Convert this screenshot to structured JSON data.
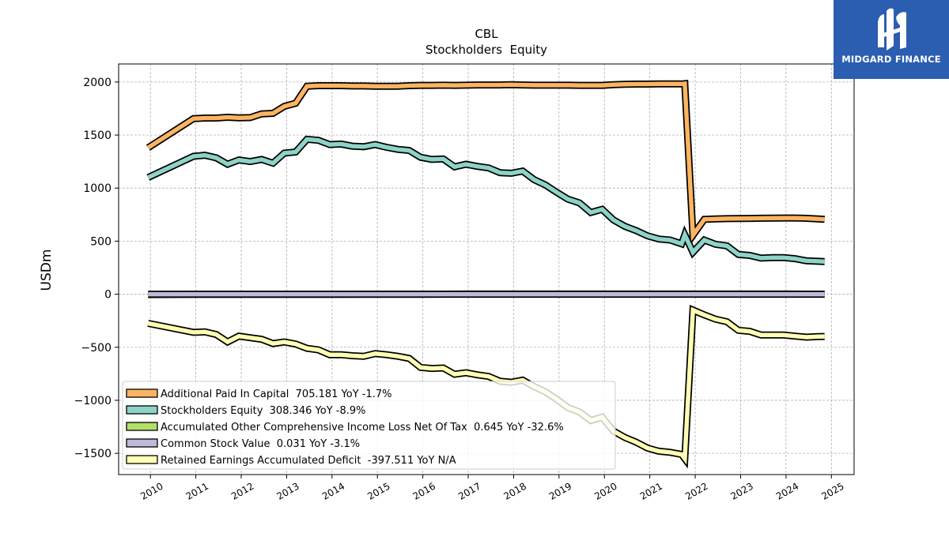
{
  "chart_data": {
    "type": "line",
    "title": "CBL",
    "subtitle": "Stockholders  Equity",
    "ylabel": "USDm",
    "xlabel": "",
    "ylim": [
      -1700,
      2170
    ],
    "xlim": [
      2009.3,
      2025.5
    ],
    "x_ticks": [
      2010,
      2011,
      2012,
      2013,
      2014,
      2015,
      2016,
      2017,
      2018,
      2019,
      2020,
      2021,
      2022,
      2023,
      2024,
      2025
    ],
    "y_ticks": [
      2000,
      1500,
      1000,
      500,
      0,
      -500,
      -1000,
      -1500
    ],
    "y_tick_labels": [
      "2000",
      "1500",
      "1000",
      "500",
      "0",
      "−500",
      "−1000",
      "−1500"
    ],
    "grid": true,
    "legend_position": "lower-left",
    "series": [
      {
        "name": "Additional Paid In Capital",
        "legend": "Additional Paid In Capital  705.181 YoY -1.7%",
        "color": "#fdb462",
        "x": [
          2009.95,
          2010.95,
          2011.2,
          2011.45,
          2011.7,
          2011.95,
          2012.2,
          2012.45,
          2012.7,
          2012.95,
          2013.2,
          2013.45,
          2013.7,
          2013.95,
          2014.2,
          2014.45,
          2014.7,
          2014.95,
          2015.2,
          2015.45,
          2015.7,
          2015.95,
          2016.2,
          2016.45,
          2016.7,
          2016.95,
          2017.2,
          2017.45,
          2017.7,
          2017.95,
          2018.2,
          2018.45,
          2018.7,
          2018.95,
          2019.2,
          2019.45,
          2019.7,
          2019.95,
          2020.2,
          2020.45,
          2020.7,
          2020.95,
          2021.2,
          2021.45,
          2021.7,
          2021.77,
          2021.95,
          2022.2,
          2022.45,
          2022.7,
          2022.95,
          2023.2,
          2023.45,
          2023.7,
          2023.95,
          2024.2,
          2024.45,
          2024.7,
          2024.85
        ],
        "y": [
          1380,
          1655,
          1660,
          1660,
          1668,
          1662,
          1665,
          1700,
          1705,
          1770,
          1800,
          1960,
          1965,
          1965,
          1965,
          1962,
          1962,
          1960,
          1960,
          1960,
          1965,
          1968,
          1968,
          1970,
          1968,
          1970,
          1972,
          1972,
          1972,
          1975,
          1972,
          1970,
          1970,
          1970,
          1970,
          1968,
          1968,
          1968,
          1975,
          1978,
          1980,
          1980,
          1982,
          1982,
          1982,
          1985,
          555,
          705,
          710,
          712,
          713,
          714,
          716,
          717,
          718,
          718,
          715,
          710,
          705
        ]
      },
      {
        "name": "Stockholders Equity",
        "legend": "Stockholders Equity  308.346 YoY -8.9%",
        "color": "#8dd3c7",
        "x": [
          2009.95,
          2010.95,
          2011.2,
          2011.45,
          2011.7,
          2011.95,
          2012.2,
          2012.45,
          2012.7,
          2012.95,
          2013.2,
          2013.45,
          2013.7,
          2013.95,
          2014.2,
          2014.45,
          2014.7,
          2014.95,
          2015.2,
          2015.45,
          2015.7,
          2015.95,
          2016.2,
          2016.45,
          2016.7,
          2016.95,
          2017.2,
          2017.45,
          2017.7,
          2017.95,
          2018.2,
          2018.45,
          2018.7,
          2018.95,
          2019.2,
          2019.45,
          2019.7,
          2019.95,
          2020.2,
          2020.45,
          2020.7,
          2020.95,
          2021.2,
          2021.45,
          2021.7,
          2021.77,
          2021.95,
          2022.2,
          2022.45,
          2022.7,
          2022.95,
          2023.2,
          2023.45,
          2023.7,
          2023.95,
          2024.2,
          2024.45,
          2024.7,
          2024.85
        ],
        "y": [
          1100,
          1300,
          1310,
          1285,
          1225,
          1265,
          1250,
          1270,
          1235,
          1330,
          1340,
          1460,
          1450,
          1410,
          1415,
          1395,
          1390,
          1410,
          1385,
          1365,
          1355,
          1290,
          1270,
          1275,
          1200,
          1225,
          1205,
          1190,
          1145,
          1140,
          1160,
          1080,
          1030,
          960,
          895,
          860,
          770,
          800,
          700,
          640,
          600,
          550,
          520,
          510,
          475,
          560,
          395,
          510,
          470,
          455,
          375,
          365,
          340,
          345,
          345,
          335,
          315,
          310,
          308
        ]
      },
      {
        "name": "Accumulated Other Comprehensive Income Loss Net Of Tax",
        "legend": "Accumulated Other Comprehensive Income Loss Net Of Tax  0.645 YoY -32.6%",
        "color": "#b3de69",
        "x": [
          2009.95,
          2011.0,
          2012.0,
          2013.0,
          2014.0,
          2015.0,
          2016.0,
          2017.0,
          2018.0,
          2019.0,
          2020.0,
          2021.0,
          2022.0,
          2023.0,
          2024.0,
          2024.85
        ],
        "y": [
          -3,
          -2,
          -2,
          -1,
          -1,
          0,
          0,
          1,
          1,
          1,
          1,
          1,
          1,
          1,
          1,
          0.645
        ]
      },
      {
        "name": "Common Stock Value",
        "legend": "Common Stock Value  0.031 YoY -3.1%",
        "color": "#bebada",
        "x": [
          2009.95,
          2011.0,
          2012.0,
          2013.0,
          2014.0,
          2014.8,
          2015.2,
          2016.0,
          2017.0,
          2018.0,
          2019.0,
          2020.0,
          2021.0,
          2021.95,
          2022.5,
          2023.0,
          2024.0,
          2024.85
        ],
        "y": [
          0,
          0,
          0,
          0,
          0,
          0,
          0,
          0,
          0,
          0,
          0,
          0,
          0,
          0,
          0,
          0,
          0,
          0.031
        ]
      },
      {
        "name": "Retained Earnings Accumulated Deficit",
        "legend": "Retained Earnings Accumulated Deficit  -397.511 YoY N/A",
        "color": "#ffffb3",
        "x": [
          2009.95,
          2010.95,
          2011.2,
          2011.45,
          2011.7,
          2011.95,
          2012.2,
          2012.45,
          2012.7,
          2012.95,
          2013.2,
          2013.45,
          2013.7,
          2013.95,
          2014.2,
          2014.45,
          2014.7,
          2014.95,
          2015.2,
          2015.45,
          2015.7,
          2015.95,
          2016.2,
          2016.45,
          2016.7,
          2016.95,
          2017.2,
          2017.45,
          2017.7,
          2017.95,
          2018.2,
          2018.45,
          2018.7,
          2018.95,
          2019.2,
          2019.45,
          2019.7,
          2019.95,
          2020.2,
          2020.45,
          2020.7,
          2020.95,
          2021.2,
          2021.45,
          2021.7,
          2021.77,
          2021.95,
          2022.2,
          2022.45,
          2022.7,
          2022.95,
          2023.2,
          2023.45,
          2023.7,
          2023.95,
          2024.2,
          2024.45,
          2024.7,
          2024.85
        ],
        "y": [
          -275,
          -360,
          -355,
          -380,
          -450,
          -395,
          -410,
          -425,
          -465,
          -450,
          -470,
          -510,
          -525,
          -570,
          -570,
          -580,
          -585,
          -560,
          -570,
          -585,
          -605,
          -690,
          -700,
          -695,
          -755,
          -740,
          -760,
          -775,
          -820,
          -830,
          -810,
          -870,
          -920,
          -990,
          -1070,
          -1110,
          -1190,
          -1160,
          -1290,
          -1350,
          -1395,
          -1450,
          -1480,
          -1490,
          -1510,
          -1550,
          -150,
          -195,
          -235,
          -260,
          -340,
          -350,
          -385,
          -385,
          -385,
          -395,
          -405,
          -400,
          -398
        ]
      }
    ]
  },
  "logo": {
    "text": "MIDGARD FINANCE"
  }
}
